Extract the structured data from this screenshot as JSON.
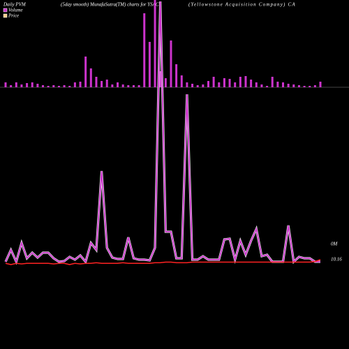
{
  "chart_data": {
    "type": "pvm",
    "title": "Daily PVM",
    "subtitle": "(5day smooth) MunafaSutra(TM) charts for YSAC",
    "company": "(Yellowstone Acquisition Company) CA",
    "legend": [
      "Volume",
      "Price"
    ],
    "right_labels": [
      "0M",
      "10.16"
    ],
    "series": [
      {
        "name": "Volume",
        "color": "#cc33cc",
        "values": [
          7,
          3,
          7,
          4,
          6,
          7,
          5,
          3,
          2,
          3,
          2,
          3,
          2,
          7,
          8,
          44,
          27,
          15,
          9,
          11,
          4,
          7,
          4,
          3,
          3,
          3,
          106,
          65,
          125,
          23,
          13,
          67,
          33,
          17,
          7,
          5,
          3,
          4,
          9,
          15,
          7,
          13,
          12,
          7,
          15,
          16,
          11,
          7,
          4,
          2,
          15,
          8,
          7,
          5,
          4,
          3,
          2,
          2,
          3,
          8
        ]
      },
      {
        "name": "Volume smooth",
        "color": "#cc33cc",
        "values": [
          3,
          20,
          3,
          30,
          8,
          16,
          9,
          16,
          16,
          8,
          3,
          4,
          10,
          6,
          12,
          3,
          30,
          20,
          133,
          23,
          9,
          7,
          7,
          38,
          8,
          6,
          6,
          5,
          23,
          376,
          46,
          46,
          8,
          8,
          243,
          6,
          6,
          11,
          6,
          6,
          6,
          35,
          36,
          6,
          33,
          13,
          33,
          50,
          11,
          13,
          3,
          3,
          3,
          55,
          3,
          10,
          8,
          8,
          3,
          3
        ]
      },
      {
        "name": "Price",
        "color": "#ff2222",
        "values": [
          10.1,
          10.08,
          10.1,
          10.09,
          10.1,
          10.1,
          10.1,
          10.1,
          10.1,
          10.09,
          10.1,
          10.1,
          10.08,
          10.1,
          10.09,
          10.1,
          10.1,
          10.11,
          10.1,
          10.1,
          10.1,
          10.1,
          10.11,
          10.1,
          10.1,
          10.1,
          10.1,
          10.1,
          10.11,
          10.11,
          10.12,
          10.12,
          10.11,
          10.11,
          10.11,
          10.12,
          10.12,
          10.12,
          10.12,
          10.12,
          10.12,
          10.12,
          10.12,
          10.12,
          10.12,
          10.12,
          10.12,
          10.12,
          10.12,
          10.12,
          10.12,
          10.12,
          10.12,
          10.12,
          10.12,
          10.12,
          10.12,
          10.12,
          10.13,
          10.16
        ]
      }
    ]
  }
}
